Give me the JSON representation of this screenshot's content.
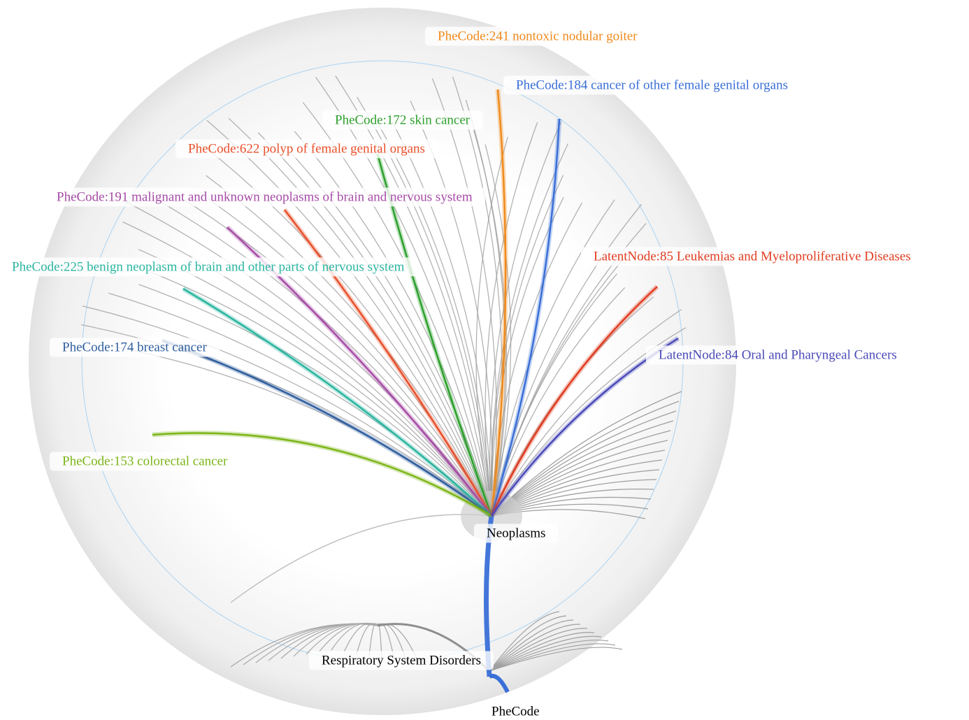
{
  "root": {
    "label": "PheCode"
  },
  "groups": [
    {
      "label": "Neoplasms"
    },
    {
      "label": "Respiratory System Disorders"
    }
  ],
  "nodes": [
    {
      "label": "PheCode:241 nontoxic nodular goiter",
      "color": "#f08a1c"
    },
    {
      "label": "PheCode:184 cancer of other female genital organs",
      "color": "#3a6fd8"
    },
    {
      "label": "PheCode:172 skin cancer",
      "color": "#2ca02c"
    },
    {
      "label": "PheCode:622 polyp of female genital organs",
      "color": "#e8502a"
    },
    {
      "label": "PheCode:191 malignant and unknown neoplasms of brain and nervous system",
      "color": "#a64ca6"
    },
    {
      "label": "PheCode:225 benign neoplasm of brain and other parts of nervous system",
      "color": "#2bb5a0"
    },
    {
      "label": "PheCode:174 breast cancer",
      "color": "#2f5e9e"
    },
    {
      "label": "PheCode:153 colorectal cancer",
      "color": "#7cb518"
    },
    {
      "label": "LatentNode:85 Leukemias and Myeloproliferative Diseases",
      "color": "#e03c20"
    },
    {
      "label": "LatentNode:84 Oral and Pharyngeal Cancers",
      "color": "#4a4ab8"
    }
  ]
}
